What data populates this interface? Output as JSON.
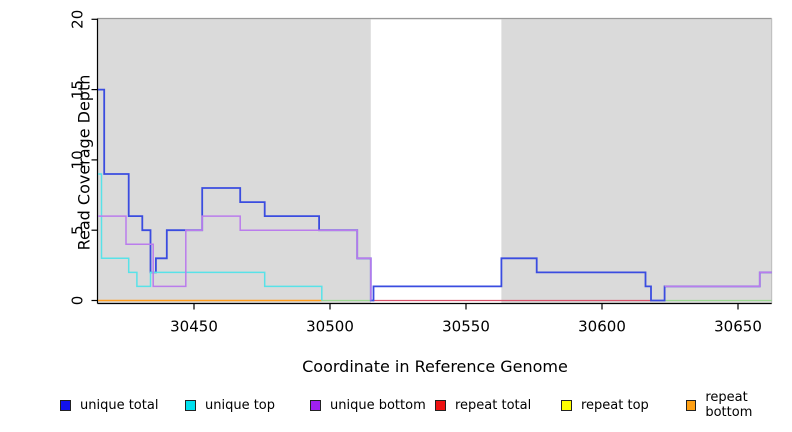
{
  "chart_data": {
    "type": "line",
    "subtype": "step-coverage",
    "title": "",
    "xlabel": "Coordinate in Reference Genome",
    "ylabel": "Read Coverage Depth",
    "xlim": [
      30414.7,
      30662.4
    ],
    "ylim": [
      0,
      20
    ],
    "x_ticks": [
      30450,
      30500,
      30550,
      30600,
      30650
    ],
    "y_ticks": [
      0,
      5,
      10,
      15,
      20
    ],
    "grid": false,
    "plot_background": "#DADADA",
    "white_band": {
      "from": 30515,
      "to": 30563
    },
    "legend_position": "bottom",
    "series": [
      {
        "name": "unique total",
        "color": "#3A4CE0",
        "legend_color": "#1212EE",
        "width": 1.8,
        "paths": [
          [
            [
              30414.7,
              15
            ],
            [
              30417,
              9
            ],
            [
              30426,
              6
            ],
            [
              30431,
              5
            ],
            [
              30434,
              2
            ],
            [
              30436,
              3
            ],
            [
              30440,
              5
            ],
            [
              30453,
              8
            ],
            [
              30467,
              7
            ],
            [
              30476,
              6
            ],
            [
              30496,
              5
            ],
            [
              30510,
              3
            ],
            [
              30515,
              0
            ],
            [
              30516,
              1
            ],
            [
              30563,
              3
            ],
            [
              30576,
              2
            ],
            [
              30616,
              1
            ],
            [
              30618,
              0
            ],
            [
              30623,
              1
            ],
            [
              30658,
              2
            ],
            [
              30662.4,
              2
            ]
          ]
        ]
      },
      {
        "name": "unique top",
        "color": "#58E2E8",
        "legend_color": "#00E0EE",
        "width": 1.5,
        "paths": [
          [
            [
              30414.7,
              9
            ],
            [
              30416,
              3
            ],
            [
              30426,
              2
            ],
            [
              30429,
              1
            ],
            [
              30434,
              2
            ],
            [
              30476,
              1
            ],
            [
              30497,
              0
            ]
          ]
        ]
      },
      {
        "name": "unique bottom",
        "color": "#BA7CEC",
        "legend_color": "#A020F0",
        "width": 1.5,
        "paths": [
          [
            [
              30414.7,
              6
            ],
            [
              30425,
              4
            ],
            [
              30435,
              1
            ],
            [
              30447,
              5
            ],
            [
              30453,
              6
            ],
            [
              30467,
              5
            ],
            [
              30510,
              3
            ],
            [
              30515,
              0
            ]
          ],
          [
            [
              30623,
              1
            ],
            [
              30658,
              2
            ],
            [
              30662.4,
              2
            ]
          ]
        ]
      },
      {
        "name": "repeat total",
        "color": "#D8556C",
        "legend_color": "#EE1212",
        "width": 1.3,
        "paths": [
          [
            [
              30515,
              0
            ],
            [
              30618,
              0
            ]
          ]
        ]
      },
      {
        "name": "repeat top",
        "color": "#9BD690",
        "legend_color": "#FFFF00",
        "width": 1.3,
        "paths": [
          [
            [
              30497,
              0
            ],
            [
              30515,
              0
            ]
          ],
          [
            [
              30623,
              0
            ],
            [
              30662.4,
              0
            ]
          ]
        ]
      },
      {
        "name": "repeat bottom",
        "color": "#FF9D1E",
        "legend_color": "#FFA014",
        "width": 1.5,
        "paths": [
          [
            [
              30414.7,
              0
            ],
            [
              30497,
              0
            ]
          ]
        ]
      }
    ],
    "draw_order": [
      5,
      4,
      3,
      0,
      1,
      2
    ]
  }
}
